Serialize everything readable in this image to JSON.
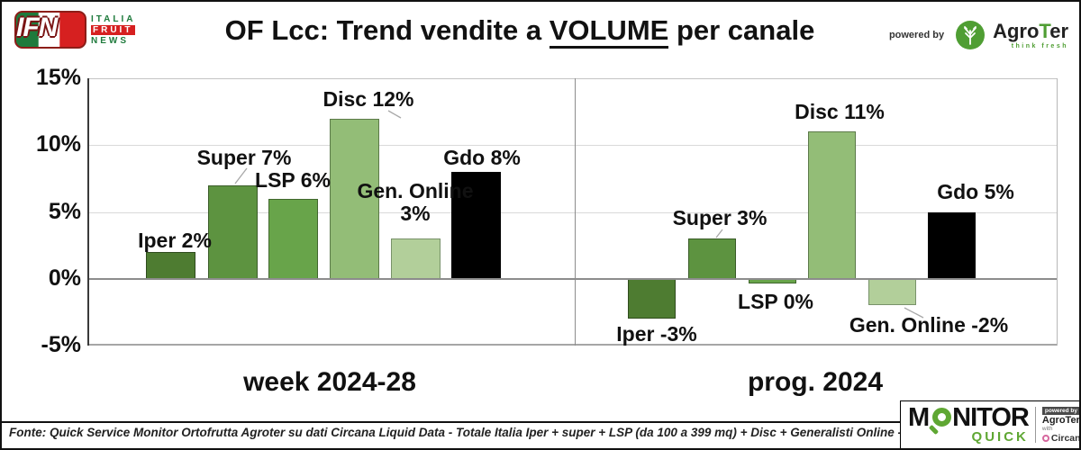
{
  "header": {
    "ifn": {
      "abbr": "IFN",
      "word1": "ITALIA",
      "word2": "FRUIT",
      "word3": "NEWS"
    },
    "title": {
      "prefix": "OF Lcc: Trend vendite a ",
      "emphasis": "VOLUME",
      "suffix": " per canale"
    },
    "powered_by_label": "powered by",
    "agroter_name_prefix": "Agro",
    "agroter_name_t": "T",
    "agroter_name_suffix": "er",
    "agroter_tagline": "think fresh"
  },
  "chart_data": {
    "type": "bar",
    "title": "OF Lcc: Trend vendite a VOLUME per canale",
    "ylim": [
      -5,
      15
    ],
    "grid": true,
    "legend": false,
    "yticks": [
      {
        "value": 15,
        "label": "15%"
      },
      {
        "value": 10,
        "label": "10%"
      },
      {
        "value": 5,
        "label": "5%"
      },
      {
        "value": 0,
        "label": "0%"
      },
      {
        "value": -5,
        "label": "-5%"
      }
    ],
    "categories": [
      "Iper",
      "Super",
      "LSP",
      "Disc",
      "Gen. Online",
      "Gdo"
    ],
    "bar_colors": [
      "#4e7c31",
      "#5d9340",
      "#68a44a",
      "#93bd77",
      "#b2cf9a",
      "#000000"
    ],
    "panels": [
      {
        "caption": "week 2024-28",
        "values": [
          2,
          7,
          6,
          12,
          3,
          8
        ],
        "labels": [
          "Iper 2%",
          "Super 7%",
          "LSP 6%",
          "Disc 12%",
          "Gen. Online 3%",
          "Gdo 8%"
        ]
      },
      {
        "caption": "prog. 2024",
        "values": [
          -3,
          3,
          0,
          11,
          -2,
          5
        ],
        "labels": [
          "Iper -3%",
          "Super 3%",
          "LSP 0%",
          "Disc 11%",
          "Gen. Online -2%",
          "Gdo 5%"
        ]
      }
    ]
  },
  "footer": {
    "source": "Fonte: Quick Service Monitor Ortofrutta Agroter su dati Circana Liquid Data - Totale Italia Iper + super + LSP (da 100 a 399 mq) + Disc + Generalisti Online - LCC",
    "monitor_quick": {
      "m": "M",
      "nitor": "NITOR",
      "quick": "QUICK",
      "powered_by": "powered by",
      "agroter": "AgroTer",
      "with": "with",
      "circana": "Circana."
    }
  }
}
